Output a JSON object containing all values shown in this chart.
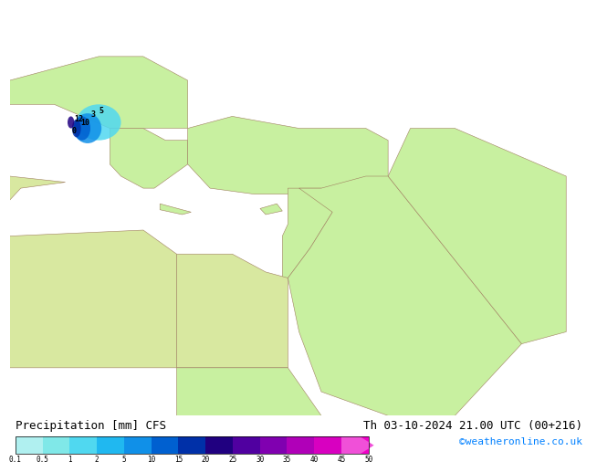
{
  "title_left": "Precipitation [mm] CFS",
  "title_right": "Th 03-10-2024 21.00 UTC (00+216)",
  "credit": "©weatheronline.co.uk",
  "colorbar_levels": [
    0.1,
    0.5,
    1,
    2,
    5,
    10,
    15,
    20,
    25,
    30,
    35,
    40,
    45,
    50
  ],
  "colorbar_colors": [
    "#b0f0f0",
    "#80e8e8",
    "#50d8f0",
    "#20b8f0",
    "#1090e8",
    "#0060d0",
    "#0030a8",
    "#200080",
    "#5000a0",
    "#8000b0",
    "#b000b8",
    "#d800c0",
    "#f000c8",
    "#f050d8"
  ],
  "land_color": "#c8f0a0",
  "sea_color": "#a0d8f0",
  "border_color": "#a08060",
  "bg_color": "#a0d0f0",
  "bottom_bg": "#ffffff",
  "credit_color": "#0080ff",
  "title_fontsize": 9,
  "credit_fontsize": 8
}
